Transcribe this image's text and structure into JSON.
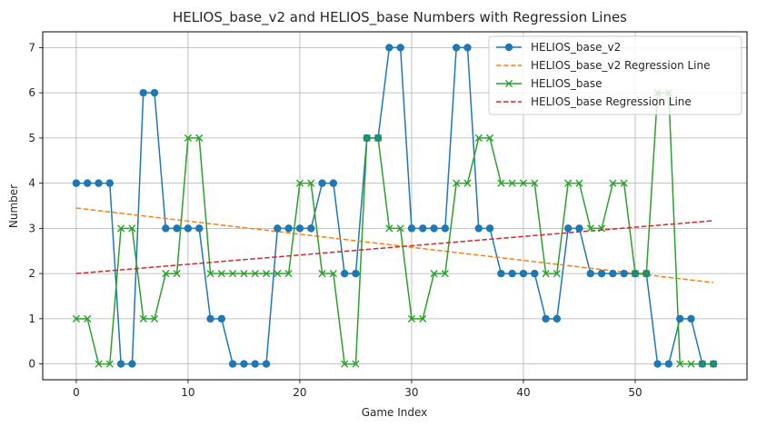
{
  "chart_data": {
    "type": "line",
    "title": "HELIOS_base_v2 and HELIOS_base Numbers with Regression Lines",
    "xlabel": "Game Index",
    "ylabel": "Number",
    "xlim": [
      -3,
      60
    ],
    "ylim": [
      -0.35,
      7.35
    ],
    "xticks": [
      0,
      10,
      20,
      30,
      40,
      50
    ],
    "yticks": [
      0,
      1,
      2,
      3,
      4,
      5,
      6,
      7
    ],
    "grid": true,
    "legend_position": "top-right",
    "series": [
      {
        "name": "HELIOS_base_v2",
        "kind": "line-marker-circle",
        "color": "#1f77b4",
        "values": [
          4,
          4,
          4,
          4,
          0,
          0,
          6,
          6,
          3,
          3,
          3,
          3,
          1,
          1,
          0,
          0,
          0,
          0,
          3,
          3,
          3,
          3,
          4,
          4,
          2,
          2,
          5,
          5,
          7,
          7,
          3,
          3,
          3,
          3,
          7,
          7,
          3,
          3,
          2,
          2,
          2,
          2,
          1,
          1,
          3,
          3,
          2,
          2,
          2,
          2,
          2,
          2,
          0,
          0,
          1,
          1,
          0,
          0
        ]
      },
      {
        "name": "HELIOS_base_v2 Regression Line",
        "kind": "regression-dashed",
        "color": "#ff7f0e",
        "x": [
          0,
          57
        ],
        "values": [
          3.45,
          1.8
        ]
      },
      {
        "name": "HELIOS_base",
        "kind": "line-marker-x",
        "color": "#2ca02c",
        "values": [
          1,
          1,
          0,
          0,
          3,
          3,
          1,
          1,
          2,
          2,
          5,
          5,
          2,
          2,
          2,
          2,
          2,
          2,
          2,
          2,
          4,
          4,
          2,
          2,
          0,
          0,
          5,
          5,
          3,
          3,
          1,
          1,
          2,
          2,
          4,
          4,
          5,
          5,
          4,
          4,
          4,
          4,
          2,
          2,
          4,
          4,
          3,
          3,
          4,
          4,
          2,
          2,
          6,
          6,
          0,
          0,
          0,
          0
        ]
      },
      {
        "name": "HELIOS_base Regression Line",
        "kind": "regression-dashed",
        "color": "#d62728",
        "x": [
          0,
          57
        ],
        "values": [
          2.0,
          3.17
        ]
      }
    ]
  }
}
